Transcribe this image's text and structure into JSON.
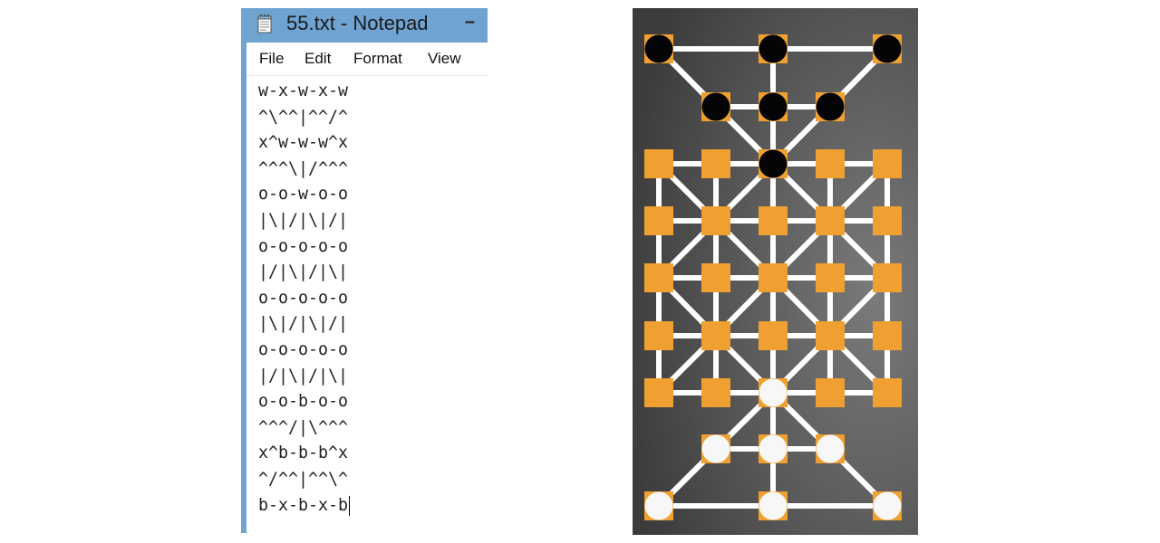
{
  "notepad": {
    "title": "55.txt - Notepad",
    "minimize_glyph": "–",
    "menu": [
      {
        "label": "File"
      },
      {
        "label": "Edit"
      },
      {
        "label": "Format"
      },
      {
        "label": "View"
      }
    ],
    "lines": [
      "w-x-w-x-w",
      "^\\^^|^^/^",
      "x^w-w-w^x",
      "^^^\\|/^^^",
      "o-o-w-o-o",
      "|\\|/|\\|/|",
      "o-o-o-o-o",
      "|/|\\|/|\\|",
      "o-o-o-o-o",
      "|\\|/|\\|/|",
      "o-o-o-o-o",
      "|/|\\|/|\\|",
      "o-o-b-o-o",
      "^^^/|\\^^^",
      "x^b-b-b^x",
      "^/^^|^^\\^",
      "b-x-b-x-b"
    ]
  },
  "board": {
    "colors": {
      "background_dark": "#3c3c3c",
      "background_light": "#7a7a7a",
      "line": "#ffffff",
      "marker": "#f0a030",
      "black_piece": "#050508",
      "white_piece": "#f7f7f7"
    }
  }
}
